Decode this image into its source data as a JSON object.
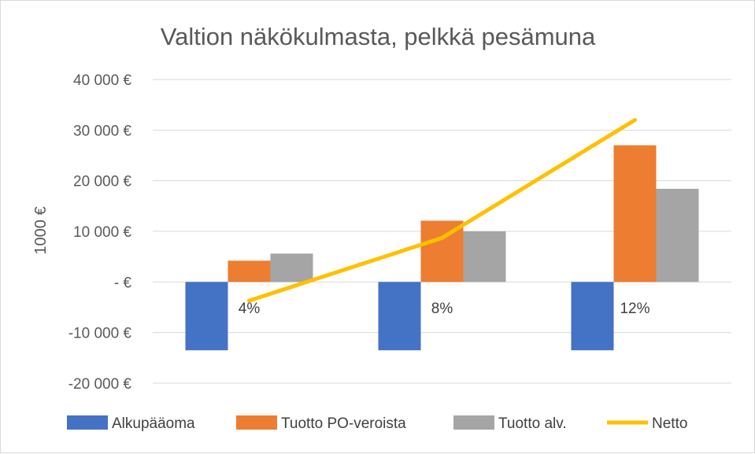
{
  "chart_data": {
    "type": "bar",
    "title": "Valtion näkökulmasta, pelkkä pesämuna",
    "xlabel": "",
    "ylabel": "1000 €",
    "categories": [
      "4%",
      "8%",
      "12%"
    ],
    "series": [
      {
        "name": "Alkupääoma",
        "type": "bar",
        "color": "#4472c4",
        "values": [
          -13500,
          -13500,
          -13500
        ]
      },
      {
        "name": "Tuotto PO-veroista",
        "type": "bar",
        "color": "#ed7d31",
        "values": [
          4200,
          12100,
          27000
        ]
      },
      {
        "name": "Tuotto alv.",
        "type": "bar",
        "color": "#a5a5a5",
        "values": [
          5600,
          10000,
          18400
        ]
      },
      {
        "name": "Netto",
        "type": "line",
        "color": "#ffc000",
        "values": [
          -3700,
          8700,
          32000
        ]
      }
    ],
    "ylim": [
      -20000,
      40000
    ],
    "yticks": [
      40000,
      30000,
      20000,
      10000,
      0,
      -10000,
      -20000
    ],
    "ytick_labels": [
      "40 000 €",
      "30 000 €",
      "20 000 €",
      "10 000 €",
      "-   €",
      "-10 000 €",
      "-20 000 €"
    ],
    "grid": true,
    "legend": "bottom"
  }
}
